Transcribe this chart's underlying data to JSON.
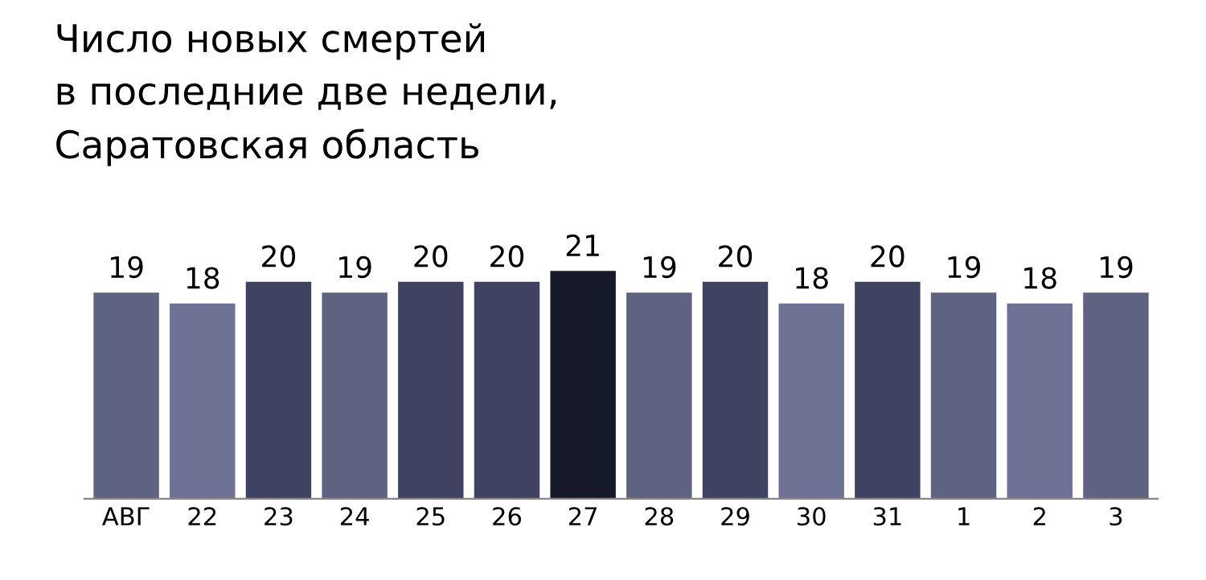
{
  "chart_data": {
    "type": "bar",
    "title": "Число новых смертей\nв последние две недели,\nСаратовская область",
    "categories": [
      "АВГ",
      "22",
      "23",
      "24",
      "25",
      "26",
      "27",
      "28",
      "29",
      "30",
      "31",
      "1",
      "2",
      "3"
    ],
    "values": [
      19,
      18,
      20,
      19,
      20,
      20,
      21,
      19,
      20,
      18,
      20,
      19,
      18,
      19
    ],
    "colors": [
      "#5f6382",
      "#6e7396",
      "#3f4260",
      "#5f6382",
      "#3f4260",
      "#3f4260",
      "#161a28",
      "#5f6382",
      "#3f4260",
      "#6e7396",
      "#3f4260",
      "#5f6382",
      "#6e7396",
      "#5f6382"
    ],
    "data_labels": true,
    "grid": false,
    "legend": false,
    "tick_labels": "x"
  }
}
